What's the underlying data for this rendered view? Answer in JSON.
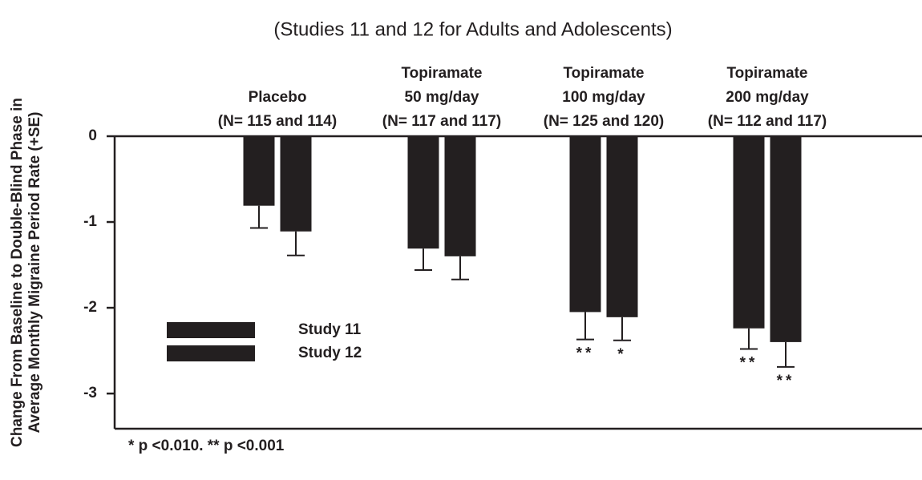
{
  "chart_data": {
    "type": "bar",
    "title": "(Studies 11 and 12 for Adults and Adolescents)",
    "y_label": [
      "Change From Baseline to Double-Blind Phase in",
      "Average Monthly Migraine Period Rate (+SE)"
    ],
    "categories": [
      [
        "Placebo",
        "(N= 115 and 114)"
      ],
      [
        "Topiramate",
        "50 mg/day",
        "(N= 117 and 117)"
      ],
      [
        "Topiramate",
        "100 mg/day",
        "(N= 125 and 120)"
      ],
      [
        "Topiramate",
        "200 mg/day",
        "(N= 112 and 117)"
      ]
    ],
    "series": [
      {
        "name": "Study 11",
        "color": "#231f20",
        "values": [
          -0.81,
          -1.31,
          -2.05,
          -2.24
        ],
        "errors": [
          0.26,
          0.25,
          0.32,
          0.24
        ],
        "markers": [
          null,
          null,
          "**",
          "**"
        ]
      },
      {
        "name": "Study 12",
        "color": "#231f20",
        "values": [
          -1.11,
          -1.4,
          -2.11,
          -2.4
        ],
        "errors": [
          0.28,
          0.27,
          0.27,
          0.29
        ],
        "markers": [
          null,
          null,
          "*",
          "**"
        ]
      }
    ],
    "ylim": [
      -3.41,
      0
    ],
    "yticks": [
      0,
      -1,
      -2,
      -3
    ],
    "footnote": "* p <0.010. ** p <0.001",
    "legend": "left"
  }
}
